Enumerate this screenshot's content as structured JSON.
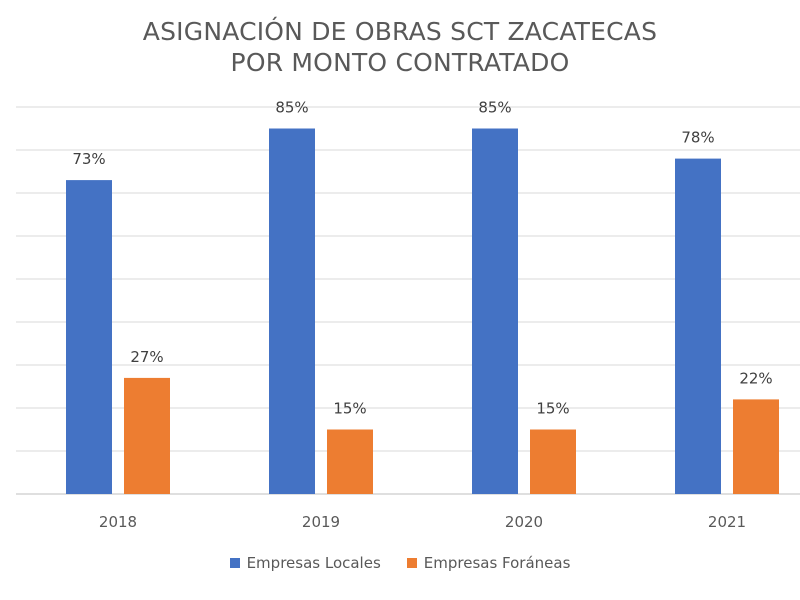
{
  "chart_data": {
    "type": "bar",
    "title": "ASIGNACIÓN DE OBRAS SCT ZACATECAS",
    "subtitle": "POR MONTO CONTRATADO",
    "categories": [
      "2018",
      "2019",
      "2020",
      "2021"
    ],
    "series": [
      {
        "name": "Empresas Locales",
        "values": [
          73,
          85,
          85,
          78
        ],
        "labels": [
          "73%",
          "85%",
          "85%",
          "78%"
        ],
        "color": "#4472C4"
      },
      {
        "name": "Empresas Foráneas",
        "values": [
          27,
          15,
          15,
          22
        ],
        "labels": [
          "27%",
          "15%",
          "15%",
          "22%"
        ],
        "color": "#ED7D31"
      }
    ],
    "ylim": [
      0,
      90
    ],
    "grid": true,
    "legend_position": "bottom"
  }
}
